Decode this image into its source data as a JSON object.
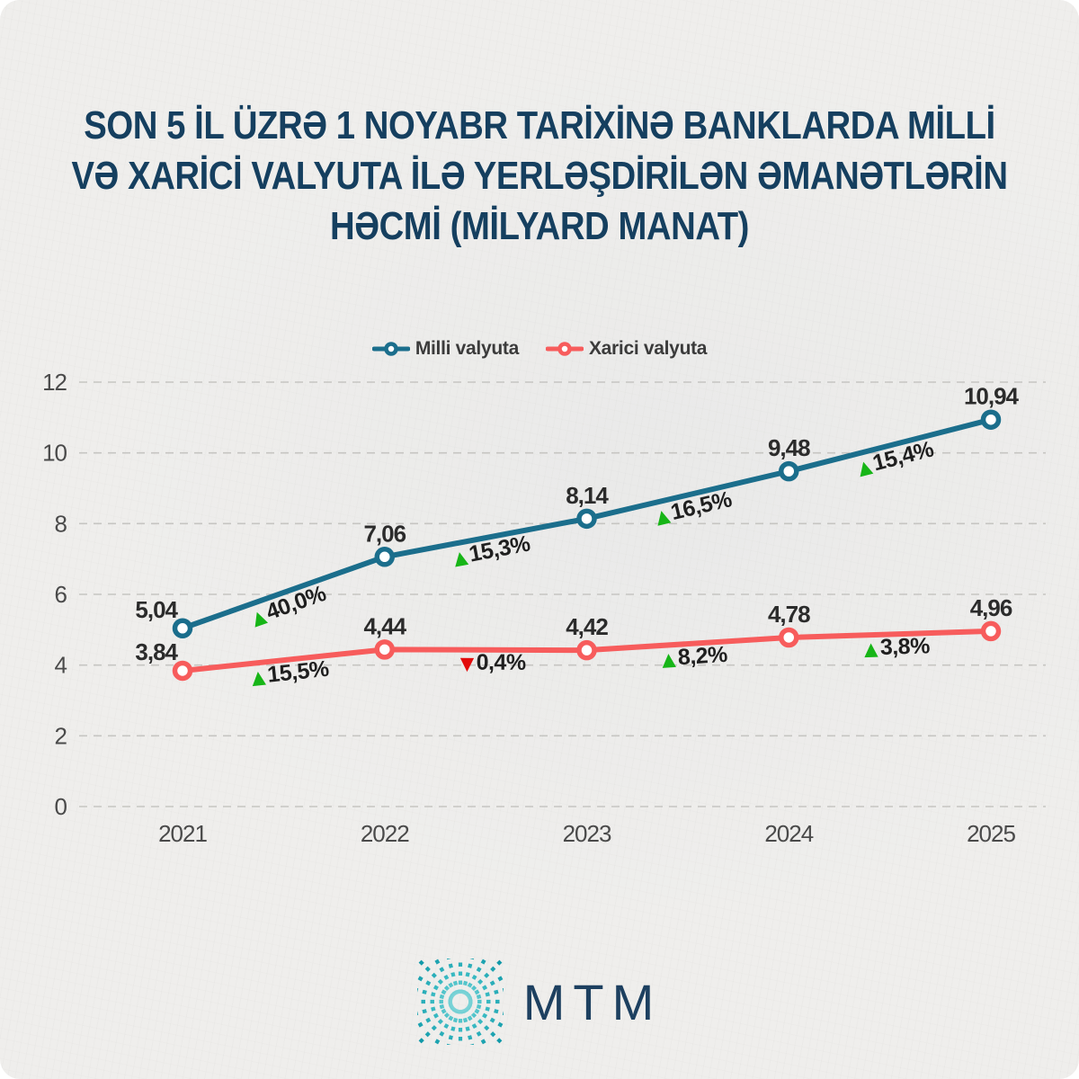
{
  "title": {
    "lines": [
      "SON 5 İL ÜZRƏ 1 NOYABR TARİXİNƏ BANKLARDA MİLLİ",
      "VƏ XARİCİ VALYUTA İLƏ YERLƏŞDİRİLƏN ƏMANƏTLƏRİN",
      "HƏCMİ (MİLYARD MANAT)"
    ]
  },
  "colors": {
    "title_navy": "#153f5f",
    "milli_teal": "#1b6e8c",
    "xarici_red": "#f75c5c",
    "up_green": "#17b517",
    "down_red": "#e20b0b",
    "grid_gray": "#c6c5c2",
    "tick_gray": "#4a4a4a"
  },
  "chart_data": {
    "type": "line",
    "title": "Son 5 il üzrə 1 noyabr tarixinə banklarda milli və xarici valyuta ilə yerləşdirilən əmanətlərin həcmi (milyard manat)",
    "x": [
      "2021",
      "2022",
      "2023",
      "2024",
      "2025"
    ],
    "xlabel": "",
    "ylabel": "",
    "ylim": [
      0,
      12
    ],
    "yticks": [
      0,
      2,
      4,
      6,
      8,
      10,
      12
    ],
    "grid": "dashed-horizontal",
    "legend_position": "top-center",
    "series": [
      {
        "name": "Milli valyuta",
        "color": "#1b6e8c",
        "values": [
          5.04,
          7.06,
          8.14,
          9.48,
          10.94
        ],
        "point_labels": [
          "5,04",
          "7,06",
          "8,14",
          "9,48",
          "10,94"
        ],
        "changes": [
          {
            "text": "40,0%",
            "dir": "up"
          },
          {
            "text": "15,3%",
            "dir": "up"
          },
          {
            "text": "16,5%",
            "dir": "up"
          },
          {
            "text": "15,4%",
            "dir": "up"
          }
        ]
      },
      {
        "name": "Xarici valyuta",
        "color": "#f75c5c",
        "values": [
          3.84,
          4.44,
          4.42,
          4.78,
          4.96
        ],
        "point_labels": [
          "3,84",
          "4,44",
          "4,42",
          "4,78",
          "4,96"
        ],
        "changes": [
          {
            "text": "15,5%",
            "dir": "up"
          },
          {
            "text": "0,4%",
            "dir": "down"
          },
          {
            "text": "8,2%",
            "dir": "up"
          },
          {
            "text": "3,8%",
            "dir": "up"
          }
        ]
      }
    ]
  },
  "logo": {
    "text": "MTM"
  }
}
